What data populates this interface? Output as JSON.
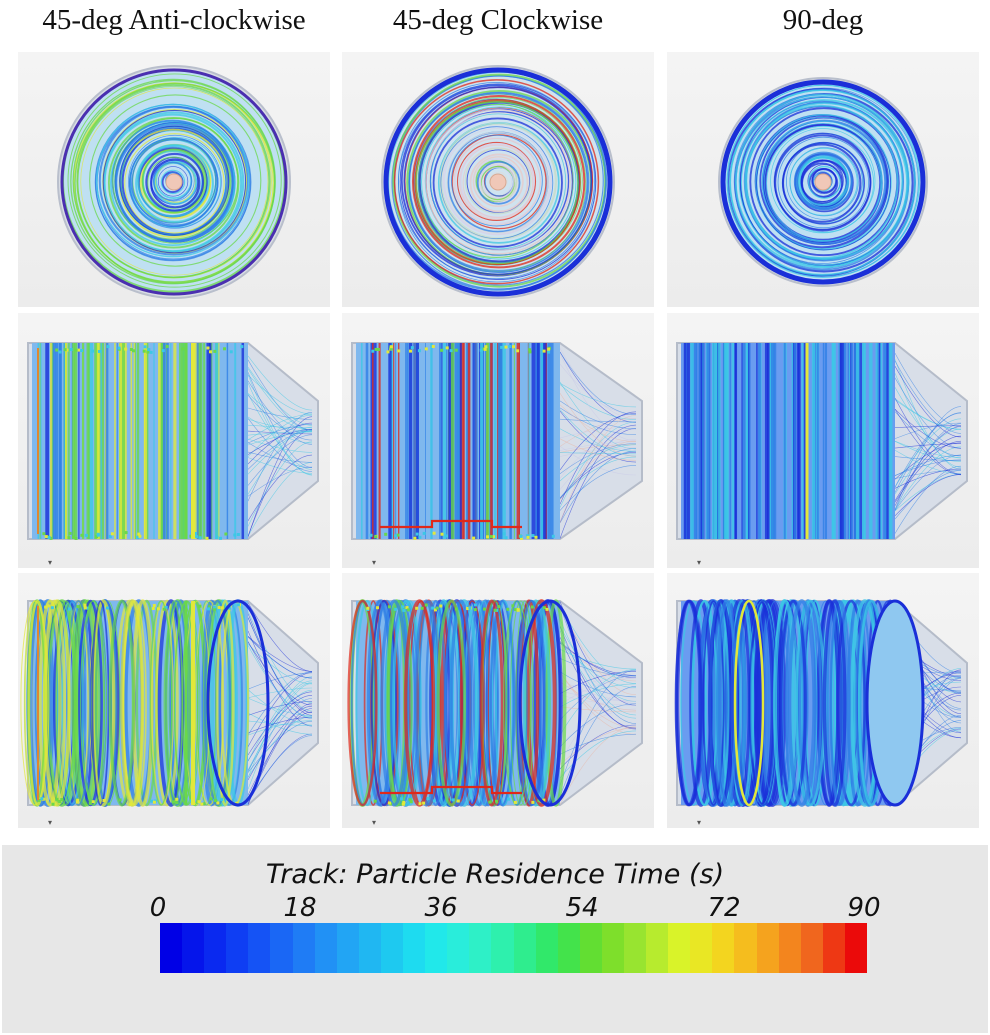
{
  "columns": [
    {
      "title": "45-deg Anti-clockwise"
    },
    {
      "title": "45-deg Clockwise"
    },
    {
      "title": "90-deg"
    }
  ],
  "rows": [
    "top view",
    "side view",
    "oblique view"
  ],
  "colorbar": {
    "title": "Track: Particle Residence Time (s)",
    "min": 0,
    "max": 90,
    "ticks": [
      "0",
      "18",
      "36",
      "54",
      "72",
      "90"
    ],
    "segments": 32,
    "colors": [
      "#0000e6",
      "#0a28f0",
      "#1450f5",
      "#1f78f5",
      "#23a0f5",
      "#1ec3f0",
      "#1ee6f0",
      "#2ef0d2",
      "#2ef0a0",
      "#32e65a",
      "#6edc28",
      "#a0e632",
      "#e1f528",
      "#f5d21e",
      "#f5a01e",
      "#f0641e",
      "#eb0a0a"
    ]
  },
  "accent": {
    "dark_blue": "#1a2fd8",
    "mid_blue": "#2f7fe6",
    "cyan": "#3cc8e6",
    "green": "#6ad84a",
    "yellow": "#e2e83a",
    "red": "#e0281a"
  }
}
